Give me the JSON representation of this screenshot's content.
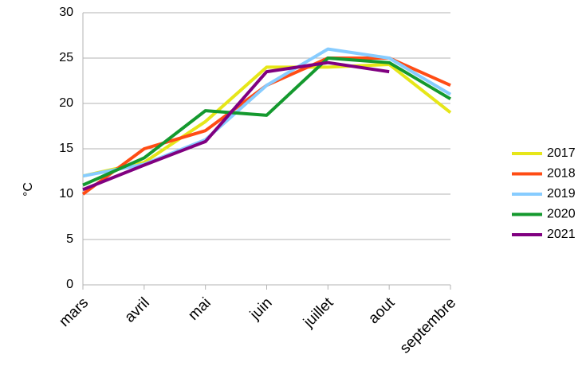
{
  "chart_data": {
    "type": "line",
    "y_label": "°C",
    "categories": [
      "mars",
      "avril",
      "mai",
      "juin",
      "juillet",
      "aout",
      "septembre"
    ],
    "series": [
      {
        "name": "2017",
        "color": "#e6e619",
        "values": [
          12,
          13.5,
          18,
          24,
          24,
          24.3,
          19
        ]
      },
      {
        "name": "2018",
        "color": "#ff4c14",
        "values": [
          10,
          15,
          17,
          22,
          25,
          25,
          22
        ]
      },
      {
        "name": "2019",
        "color": "#87ccff",
        "values": [
          12,
          13.3,
          16,
          22,
          26,
          25,
          21
        ]
      },
      {
        "name": "2020",
        "color": "#14992e",
        "values": [
          11,
          14,
          19.2,
          18.7,
          25,
          24.5,
          20.5
        ]
      },
      {
        "name": "2021",
        "color": "#800080",
        "values": [
          10.5,
          13.2,
          15.8,
          23.5,
          24.5,
          23.5,
          null
        ]
      }
    ],
    "ylim": [
      0,
      30
    ],
    "yticks": [
      0,
      5,
      10,
      15,
      20,
      25,
      30
    ],
    "grid": true,
    "legend": "right"
  }
}
